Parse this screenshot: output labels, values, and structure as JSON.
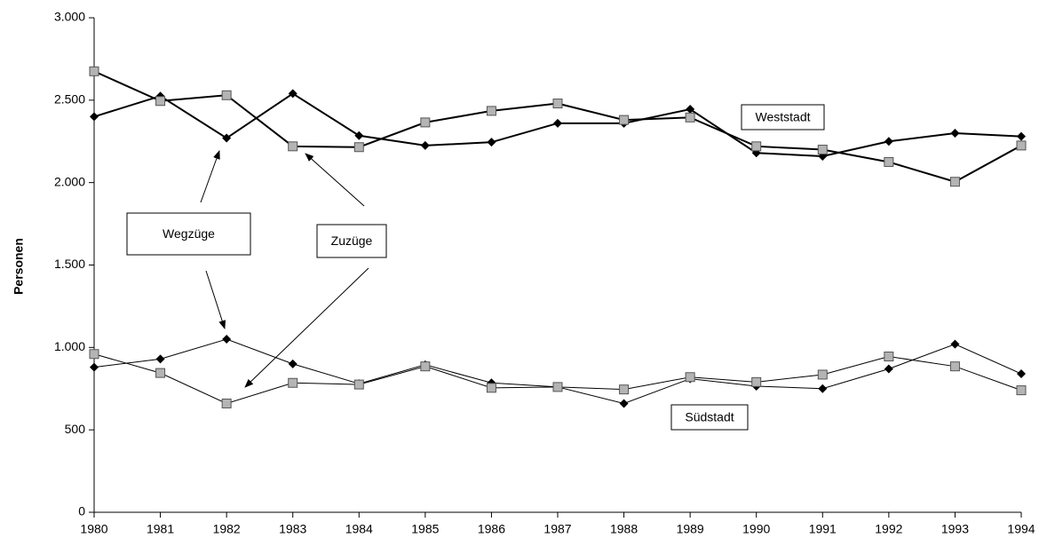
{
  "chart_data": {
    "type": "line",
    "y_label": "Personen",
    "x": [
      1980,
      1981,
      1982,
      1983,
      1984,
      1985,
      1986,
      1987,
      1988,
      1989,
      1990,
      1991,
      1992,
      1993,
      1994
    ],
    "xlim": [
      1980,
      1994
    ],
    "xticks": [
      1980,
      1981,
      1982,
      1983,
      1984,
      1985,
      1986,
      1987,
      1988,
      1989,
      1990,
      1991,
      1992,
      1993,
      1994
    ],
    "ylim": [
      0,
      3000
    ],
    "yticks": [
      0,
      500,
      {
        "value": 1000,
        "label": "1.000"
      },
      {
        "value": 1500,
        "label": "1.500"
      },
      {
        "value": 2000,
        "label": "2.000"
      },
      {
        "value": 2500,
        "label": "2.500"
      },
      {
        "value": 3000,
        "label": "3.000"
      }
    ],
    "grid": false,
    "series": [
      {
        "color": "#000000",
        "marker": "diamond",
        "line_width": 2,
        "values": [
          2400,
          2525,
          2270,
          2540,
          2285,
          2225,
          2245,
          2360,
          2360,
          2445,
          2180,
          2160,
          2250,
          2300,
          2280
        ]
      },
      {
        "color": "#b4b4b4",
        "marker": "square",
        "line_width": 2,
        "values": [
          2675,
          2495,
          2530,
          2220,
          2215,
          2365,
          2435,
          2480,
          2380,
          2395,
          2220,
          2200,
          2125,
          2005,
          2225
        ]
      },
      {
        "color": "#000000",
        "marker": "diamond",
        "line_width": 1,
        "values": [
          880,
          930,
          1050,
          900,
          780,
          895,
          785,
          760,
          660,
          810,
          765,
          750,
          870,
          1020,
          840
        ]
      },
      {
        "color": "#b4b4b4",
        "marker": "square",
        "line_width": 1,
        "values": [
          960,
          845,
          660,
          785,
          775,
          885,
          755,
          760,
          745,
          820,
          790,
          835,
          945,
          885,
          740
        ]
      }
    ],
    "annotations": [
      "Weststadt",
      "Südstadt",
      "Wegzüge",
      "Zuzüge"
    ]
  }
}
